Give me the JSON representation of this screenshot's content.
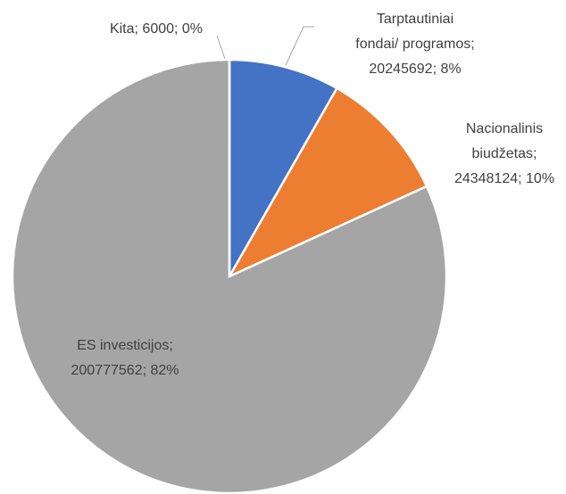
{
  "chart_data": {
    "type": "pie",
    "categories": [
      "Tarptautiniai fondai/ programos",
      "Nacionalinis biudžetas",
      "ES investicijos",
      "Kita"
    ],
    "values": [
      20245692,
      24348124,
      200777562,
      6000
    ],
    "value_labels": [
      [
        "Tarptautiniai",
        "fondai/ programos;",
        "20245692; 8%"
      ],
      [
        "Nacionalinis",
        "biudžetas;",
        "24348124; 10%"
      ],
      [
        "ES investicijos;",
        "200777562; 82%"
      ],
      [
        "Kita; 6000; 0%"
      ]
    ],
    "colors": [
      "#4472c4",
      "#ed7d31",
      "#a5a5a5",
      "#ffc000"
    ]
  }
}
